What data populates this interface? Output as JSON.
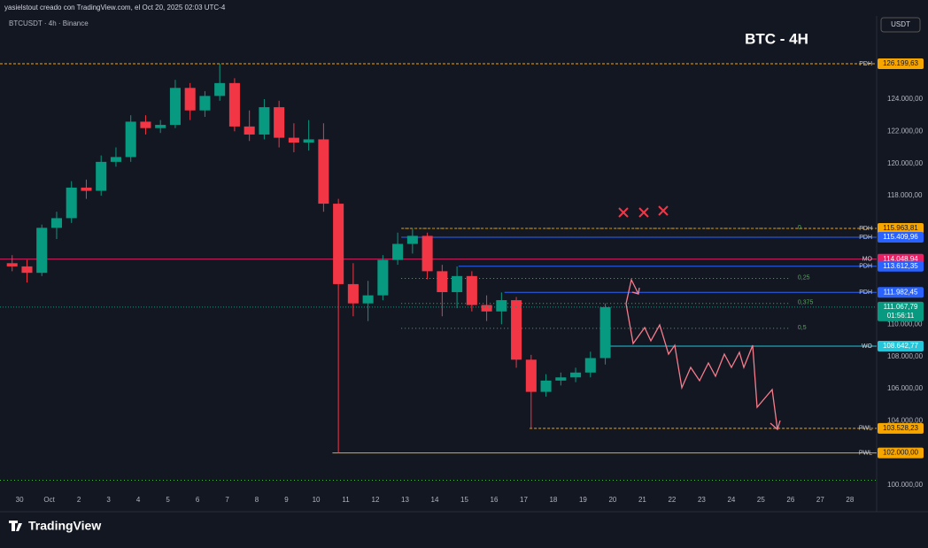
{
  "header": {
    "caption": "yasielstout creado con TradingView.com, el Oct 20, 2025 02:03 UTC-4",
    "symbol": "BTCUSDT · 4h · Binance",
    "currency": "USDT",
    "brand": "TradingView"
  },
  "chart_data": {
    "type": "candlestick",
    "title": "BTC - 4H",
    "x": [
      -0.5,
      0,
      0.5,
      1,
      1.5,
      2,
      2.5,
      3,
      3.5,
      4,
      4.5,
      5,
      5.5,
      6,
      6.5,
      7,
      7.5,
      8,
      8.5,
      9,
      9.5,
      10,
      10.5,
      11,
      11.5,
      12,
      12.5,
      13,
      13.5,
      14,
      14.5,
      15,
      15.5,
      16,
      16.5,
      17,
      17.5,
      18,
      18.5,
      19,
      19.5
    ],
    "open": [
      113800,
      113600,
      113200,
      116000,
      116600,
      118500,
      118300,
      120100,
      120400,
      122600,
      122200,
      122400,
      124700,
      123300,
      124200,
      125000,
      122300,
      121800,
      123500,
      121600,
      121300,
      121500,
      117500,
      112500,
      111300,
      111800,
      114000,
      115000,
      115500,
      113300,
      112000,
      113000,
      111200,
      110800,
      111500,
      107800,
      105800,
      106500,
      106700,
      107000,
      107900
    ],
    "high": [
      114300,
      114000,
      116200,
      117000,
      118900,
      119000,
      120500,
      121000,
      123000,
      123000,
      122700,
      125200,
      125000,
      124500,
      126199.63,
      125300,
      123300,
      124000,
      123900,
      122500,
      122700,
      122500,
      117800,
      113800,
      112700,
      114300,
      115700,
      115963.81,
      115700,
      113700,
      113600,
      113300,
      111800,
      111982.45,
      111700,
      108100,
      106900,
      107000,
      107300,
      108300,
      111300
    ],
    "low": [
      113300,
      112600,
      113000,
      115300,
      116300,
      117800,
      118000,
      119800,
      120100,
      121800,
      121900,
      122200,
      122700,
      122900,
      123900,
      122000,
      121400,
      121500,
      121000,
      120700,
      120800,
      117000,
      102000,
      110500,
      110200,
      111500,
      113700,
      114400,
      112800,
      110500,
      111000,
      110800,
      110200,
      110000,
      107300,
      103528.23,
      105500,
      106200,
      106400,
      106700,
      107500
    ],
    "close": [
      113600,
      113200,
      116000,
      116600,
      118500,
      118300,
      120100,
      120400,
      122600,
      122200,
      122400,
      124700,
      123300,
      124200,
      125000,
      122300,
      121800,
      123500,
      121600,
      121300,
      121500,
      117500,
      112500,
      111300,
      111800,
      114000,
      115000,
      115500,
      113300,
      112000,
      113000,
      111200,
      110800,
      111500,
      107800,
      105800,
      106500,
      106700,
      107000,
      107900,
      111067.79
    ],
    "up_color": "#089981",
    "down_color": "#f23645",
    "xlim": [
      -0.66,
      28.9
    ],
    "xticks": [
      {
        "value": 0,
        "label": "30"
      },
      {
        "value": 1,
        "label": "Oct"
      },
      2,
      3,
      4,
      5,
      6,
      7,
      8,
      9,
      10,
      11,
      12,
      13,
      14,
      15,
      16,
      17,
      18,
      19,
      20,
      21,
      22,
      23,
      24,
      25,
      26,
      27,
      28
    ],
    "ylim": [
      99613,
      129065
    ],
    "yticks": [
      {
        "value": 100000,
        "label": "100.000,00"
      },
      {
        "value": 104000,
        "label": "104.000,00"
      },
      {
        "value": 106000,
        "label": "106.000,00"
      },
      {
        "value": 108000,
        "label": "108.000,00"
      },
      {
        "value": 110000,
        "label": "110.000,00"
      },
      {
        "value": 118000,
        "label": "118.000,00"
      },
      {
        "value": 120000,
        "label": "120.000,00"
      },
      {
        "value": 122000,
        "label": "122.000,00"
      },
      {
        "value": 124000,
        "label": "124.000,00"
      }
    ],
    "levels": [
      {
        "name": "PDH",
        "value": 126199.63,
        "label": "126.199,63",
        "color": "#f7a600",
        "style": "dashed",
        "from": -0.66
      },
      {
        "name": "PDH",
        "value": 115963.81,
        "label": "115.963,81",
        "color": "#f7a600",
        "style": "dashed",
        "from": 12.87
      },
      {
        "name": "PDH",
        "value": 115409.96,
        "label": "115.409,96",
        "color": "#2962ff",
        "style": "solid",
        "from": 12.87
      },
      {
        "name": "MO",
        "value": 114048.94,
        "label": "114.048,94",
        "color": "#e91e63",
        "style": "solid",
        "from": -0.66
      },
      {
        "name": "PDH",
        "value": 113612.35,
        "label": "113.612,35",
        "color": "#2962ff",
        "style": "solid",
        "from": 14.8
      },
      {
        "name": "PDH",
        "value": 111982.45,
        "label": "111.982,45",
        "color": "#2962ff",
        "style": "solid",
        "from": 16.35
      },
      {
        "name": "WO",
        "value": 108642.77,
        "label": "108.642,77",
        "color": "#26c6da",
        "style": "solid",
        "from": 19.9
      },
      {
        "name": "PWL",
        "value": 103528.23,
        "label": "103.528,23",
        "color": "#f7a600",
        "style": "dashed",
        "from": 17.2
      },
      {
        "name": "PWL",
        "value": 102000.0,
        "label": "102.000,00",
        "color": "#f7a600",
        "style": "solid",
        "from": 10.55
      },
      {
        "value": 100300,
        "color": "#4caf50",
        "style": "dotted",
        "from": -0.66
      }
    ],
    "fib": {
      "from": 12.87,
      "to": 26,
      "color": "#4caf50",
      "levels": [
        {
          "value": 115963.81,
          "label": "0"
        },
        {
          "value": 112855,
          "label": "0,25"
        },
        {
          "value": 111300,
          "label": "0,375"
        },
        {
          "value": 109746,
          "label": "0,5"
        }
      ]
    },
    "current_price": {
      "value": 111067.79,
      "label": "111.067,79",
      "countdown": "01:56:11",
      "color": "#089981"
    }
  }
}
